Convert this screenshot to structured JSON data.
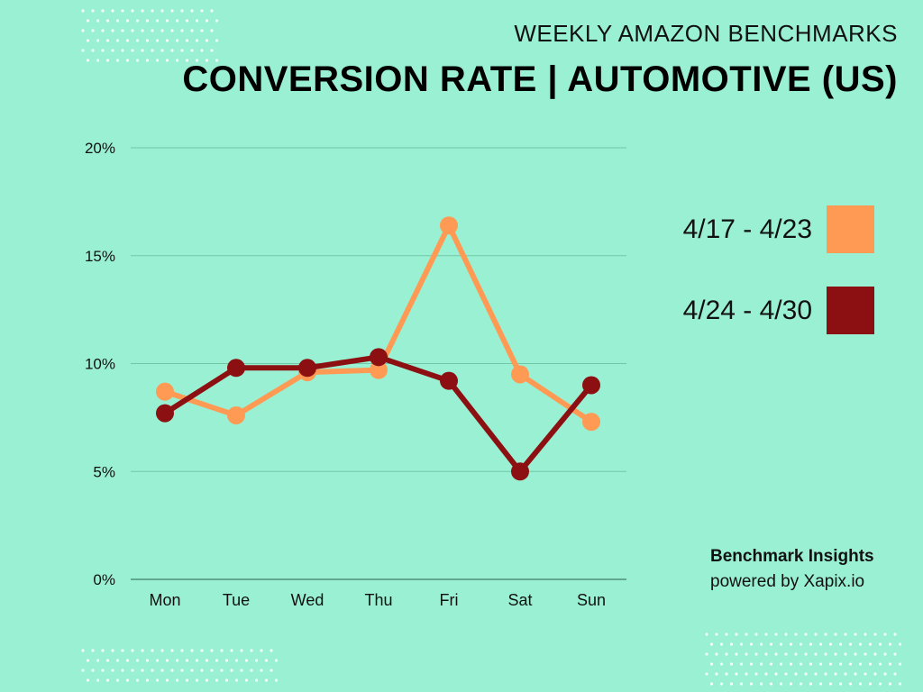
{
  "header": {
    "subtitle": "WEEKLY AMAZON BENCHMARKS",
    "title": "CONVERSION RATE | AUTOMOTIVE (US)"
  },
  "credit": {
    "line1": "Benchmark Insights",
    "line2": "powered by Xapix.io"
  },
  "colors": {
    "background": "#9af0d3",
    "series_a": "#ff9a55",
    "series_b": "#8c0f12",
    "gridline": "#6fc7a6",
    "axis": "#4f8f7a"
  },
  "chart_data": {
    "type": "line",
    "categories": [
      "Mon",
      "Tue",
      "Wed",
      "Thu",
      "Fri",
      "Sat",
      "Sun"
    ],
    "series": [
      {
        "name": "4/17 - 4/23",
        "values": [
          8.7,
          7.6,
          9.6,
          9.7,
          16.4,
          9.5,
          7.3
        ],
        "color": "#ff9a55"
      },
      {
        "name": "4/24 - 4/30",
        "values": [
          7.7,
          9.8,
          9.8,
          10.3,
          9.2,
          5.0,
          9.0
        ],
        "color": "#8c0f12"
      }
    ],
    "ylim": [
      0,
      20
    ],
    "yticks": [
      0,
      5,
      10,
      15,
      20
    ],
    "ytick_labels": [
      "0%",
      "5%",
      "10%",
      "15%",
      "20%"
    ],
    "grid": true,
    "legend_position": "right"
  }
}
